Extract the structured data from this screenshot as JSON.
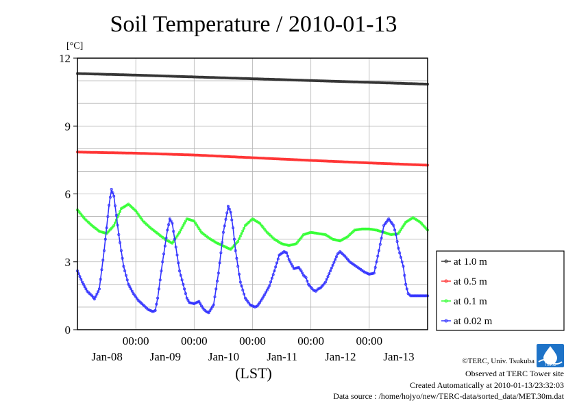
{
  "chart_data": {
    "type": "line",
    "title": "Soil Temperature / 2010-01-13",
    "ylabel": "[°C]",
    "xlabel": "(LST)",
    "ylim": [
      0,
      12
    ],
    "yticks": [
      "0",
      "3",
      "6",
      "9",
      "12"
    ],
    "xlim_hours": [
      0,
      144
    ],
    "xticks": [
      {
        "hour": 24,
        "time": "00:00",
        "date": "Jan-08"
      },
      {
        "hour": 48,
        "time": "00:00",
        "date": "Jan-09"
      },
      {
        "hour": 72,
        "time": "00:00",
        "date": "Jan-10"
      },
      {
        "hour": 96,
        "time": "00:00",
        "date": "Jan-11"
      },
      {
        "hour": 120,
        "time": "00:00",
        "date": "Jan-12"
      },
      {
        "hour": 144,
        "time": "",
        "date": "Jan-13"
      }
    ],
    "grid": true,
    "legend_position": "right",
    "series": [
      {
        "name": "at 1.0 m",
        "color": "#333333",
        "x": [
          0,
          24,
          48,
          72,
          96,
          120,
          144
        ],
        "y": [
          11.32,
          11.25,
          11.17,
          11.09,
          11.01,
          10.93,
          10.85
        ]
      },
      {
        "name": "at 0.5 m",
        "color": "#ff3333",
        "x": [
          0,
          24,
          48,
          72,
          96,
          120,
          144
        ],
        "y": [
          7.85,
          7.8,
          7.72,
          7.6,
          7.48,
          7.37,
          7.27
        ]
      },
      {
        "name": "at 0.1 m",
        "color": "#33ff33",
        "x": [
          0,
          3,
          6,
          9,
          12,
          15,
          18,
          21,
          24,
          27,
          30,
          33,
          36,
          39,
          42,
          45,
          48,
          51,
          54,
          57,
          60,
          63,
          66,
          69,
          72,
          75,
          78,
          81,
          84,
          87,
          90,
          93,
          96,
          99,
          102,
          105,
          108,
          111,
          114,
          117,
          120,
          123,
          126,
          129,
          132,
          135,
          138,
          141,
          144
        ],
        "y": [
          5.3,
          4.9,
          4.6,
          4.35,
          4.25,
          4.6,
          5.35,
          5.55,
          5.25,
          4.8,
          4.5,
          4.25,
          4.0,
          3.82,
          4.3,
          4.9,
          4.8,
          4.3,
          4.05,
          3.85,
          3.7,
          3.55,
          3.9,
          4.6,
          4.9,
          4.7,
          4.3,
          4.0,
          3.8,
          3.72,
          3.8,
          4.2,
          4.3,
          4.25,
          4.2,
          4.0,
          3.92,
          4.1,
          4.4,
          4.45,
          4.45,
          4.4,
          4.3,
          4.2,
          4.25,
          4.75,
          4.95,
          4.75,
          4.4
        ]
      },
      {
        "name": "at 0.02 m",
        "color": "#3333ff",
        "x": [
          0,
          2,
          4,
          6,
          7,
          9,
          11,
          13,
          14,
          15,
          17,
          19,
          21,
          23,
          25,
          27,
          29,
          31,
          32,
          33,
          35,
          37,
          38,
          39,
          40,
          42,
          44,
          45,
          46,
          48,
          50,
          51,
          52,
          53,
          54,
          56,
          58,
          60,
          62,
          63,
          64,
          65,
          67,
          69,
          71,
          73,
          74,
          75,
          77,
          79,
          81,
          83,
          85,
          86,
          87,
          89,
          91,
          92,
          93,
          94,
          95,
          97,
          98,
          99,
          100,
          102,
          104,
          106,
          107,
          108,
          110,
          112,
          114,
          116,
          118,
          120,
          122,
          124,
          126,
          128,
          130,
          131,
          132,
          134,
          135,
          136,
          137,
          138,
          140,
          142,
          144
        ],
        "y": [
          2.6,
          2.1,
          1.7,
          1.5,
          1.35,
          1.8,
          3.5,
          5.5,
          6.2,
          5.9,
          4.2,
          2.8,
          2.0,
          1.6,
          1.3,
          1.1,
          0.9,
          0.8,
          0.85,
          1.4,
          3.0,
          4.4,
          4.9,
          4.7,
          4.0,
          2.6,
          1.8,
          1.4,
          1.2,
          1.15,
          1.25,
          1.05,
          0.9,
          0.8,
          0.75,
          1.1,
          2.5,
          4.3,
          5.45,
          5.2,
          4.5,
          3.5,
          2.1,
          1.4,
          1.1,
          1.0,
          1.05,
          1.2,
          1.55,
          1.95,
          2.6,
          3.3,
          3.45,
          3.4,
          3.1,
          2.7,
          2.75,
          2.6,
          2.4,
          2.3,
          2.0,
          1.75,
          1.7,
          1.8,
          1.85,
          2.1,
          2.6,
          3.1,
          3.35,
          3.45,
          3.25,
          3.0,
          2.85,
          2.7,
          2.55,
          2.45,
          2.5,
          3.5,
          4.6,
          4.9,
          4.6,
          4.2,
          3.6,
          2.8,
          2.0,
          1.6,
          1.5,
          1.5,
          1.5,
          1.5,
          1.5
        ]
      }
    ]
  },
  "credits": {
    "copyright": "©TERC, Univ. Tsukuba",
    "site": "Observed at TERC Tower site",
    "created": "Created Automatically at 2010-01-13/23:32:03",
    "source": "Data source : /home/hojyo/new/TERC-data/sorted_data/MET.30m.dat"
  },
  "logo": {
    "text": "TERC"
  }
}
